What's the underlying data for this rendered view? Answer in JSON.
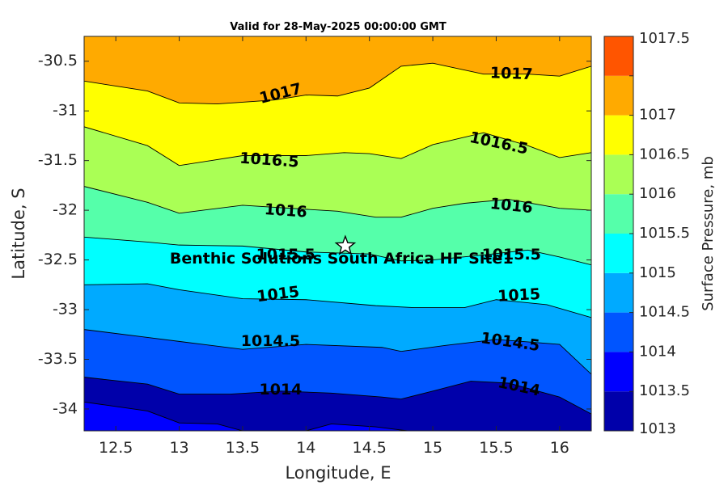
{
  "chart_data": {
    "type": "contour",
    "title": "Valid for 28-May-2025 00:00:00 GMT",
    "xlabel": "Longitude, E",
    "ylabel": "Latitude, S",
    "xlim": [
      12.25,
      16.25
    ],
    "ylim": [
      -34.22,
      -30.25
    ],
    "x_ticks": [
      12.5,
      13,
      13.5,
      14,
      14.5,
      15,
      15.5,
      16
    ],
    "x_tick_labels": [
      "12.5",
      "13",
      "13.5",
      "14",
      "14.5",
      "15",
      "15.5",
      "16"
    ],
    "y_ticks": [
      -30.5,
      -31,
      -31.5,
      -32,
      -32.5,
      -33,
      -33.5,
      -34
    ],
    "y_tick_labels": [
      "-30.5",
      "-31",
      "-31.5",
      "-32",
      "-32.5",
      "-33",
      "-33.5",
      "-34"
    ],
    "colorbar": {
      "label": "Surface Pressure, mb",
      "levels": [
        1013,
        1013.5,
        1014,
        1014.5,
        1015,
        1015.5,
        1016,
        1016.5,
        1017,
        1017.5
      ],
      "labels": [
        "1013",
        "1013.5",
        "1014",
        "1014.5",
        "1015",
        "1015.5",
        "1016",
        "1016.5",
        "1017",
        "1017.5"
      ],
      "colors": [
        "#0000aa",
        "#0000ff",
        "#0055ff",
        "#00aaff",
        "#00ffff",
        "#55ffaa",
        "#aaff55",
        "#ffff00",
        "#ffaa00",
        "#ff5500"
      ]
    },
    "contours": [
      {
        "level": 1013.5,
        "points": [
          [
            12.25,
            -33.93
          ],
          [
            12.75,
            -34.02
          ],
          [
            13.0,
            -34.14
          ],
          [
            13.3,
            -34.15
          ],
          [
            13.5,
            -34.22
          ]
        ]
      },
      {
        "level": 1013.5,
        "points": [
          [
            14.0,
            -34.22
          ],
          [
            14.2,
            -34.15
          ],
          [
            14.55,
            -34.18
          ],
          [
            14.8,
            -34.22
          ]
        ]
      },
      {
        "level": 1014,
        "points": [
          [
            12.25,
            -33.68
          ],
          [
            12.75,
            -33.75
          ],
          [
            13.0,
            -33.85
          ],
          [
            13.4,
            -33.85
          ],
          [
            13.8,
            -33.82
          ],
          [
            14.2,
            -33.84
          ],
          [
            14.6,
            -33.88
          ],
          [
            14.75,
            -33.9
          ],
          [
            15.0,
            -33.82
          ],
          [
            15.3,
            -33.72
          ],
          [
            15.6,
            -33.74
          ],
          [
            16.0,
            -33.88
          ],
          [
            16.25,
            -34.05
          ]
        ]
      },
      {
        "level": 1014.5,
        "points": [
          [
            12.25,
            -33.2
          ],
          [
            12.75,
            -33.28
          ],
          [
            13.0,
            -33.32
          ],
          [
            13.5,
            -33.4
          ],
          [
            14.0,
            -33.35
          ],
          [
            14.6,
            -33.38
          ],
          [
            14.75,
            -33.42
          ],
          [
            15.1,
            -33.36
          ],
          [
            15.5,
            -33.3
          ],
          [
            16.0,
            -33.35
          ],
          [
            16.25,
            -33.65
          ]
        ]
      },
      {
        "level": 1015,
        "points": [
          [
            12.25,
            -32.75
          ],
          [
            12.75,
            -32.74
          ],
          [
            13.0,
            -32.8
          ],
          [
            13.5,
            -32.89
          ],
          [
            14.0,
            -32.9
          ],
          [
            14.55,
            -32.96
          ],
          [
            14.85,
            -32.98
          ],
          [
            15.25,
            -32.98
          ],
          [
            15.5,
            -32.9
          ],
          [
            15.9,
            -32.95
          ],
          [
            16.25,
            -33.08
          ]
        ]
      },
      {
        "level": 1015.5,
        "points": [
          [
            12.25,
            -32.27
          ],
          [
            12.75,
            -32.32
          ],
          [
            13.0,
            -32.35
          ],
          [
            13.5,
            -32.36
          ],
          [
            14.0,
            -32.42
          ],
          [
            14.5,
            -32.44
          ],
          [
            14.75,
            -32.51
          ],
          [
            15.0,
            -32.5
          ],
          [
            15.4,
            -32.45
          ],
          [
            15.75,
            -32.4
          ],
          [
            16.0,
            -32.47
          ],
          [
            16.25,
            -32.55
          ]
        ]
      },
      {
        "level": 1016,
        "points": [
          [
            12.25,
            -31.76
          ],
          [
            12.75,
            -31.92
          ],
          [
            13.0,
            -32.03
          ],
          [
            13.5,
            -31.95
          ],
          [
            14.0,
            -31.99
          ],
          [
            14.25,
            -32.01
          ],
          [
            14.55,
            -32.07
          ],
          [
            14.75,
            -32.07
          ],
          [
            15.0,
            -31.98
          ],
          [
            15.25,
            -31.93
          ],
          [
            15.6,
            -31.89
          ],
          [
            16.0,
            -31.98
          ],
          [
            16.25,
            -32.0
          ]
        ]
      },
      {
        "level": 1016.5,
        "points": [
          [
            12.25,
            -31.16
          ],
          [
            12.75,
            -31.35
          ],
          [
            13.0,
            -31.55
          ],
          [
            13.25,
            -31.5
          ],
          [
            13.5,
            -31.45
          ],
          [
            14.0,
            -31.45
          ],
          [
            14.3,
            -31.42
          ],
          [
            14.5,
            -31.43
          ],
          [
            14.75,
            -31.48
          ],
          [
            15.0,
            -31.34
          ],
          [
            15.4,
            -31.22
          ],
          [
            15.75,
            -31.35
          ],
          [
            16.0,
            -31.47
          ],
          [
            16.25,
            -31.42
          ]
        ]
      },
      {
        "level": 1017,
        "points": [
          [
            12.25,
            -30.7
          ],
          [
            12.75,
            -30.8
          ],
          [
            13.0,
            -30.92
          ],
          [
            13.3,
            -30.93
          ],
          [
            13.75,
            -30.89
          ],
          [
            14.0,
            -30.84
          ],
          [
            14.25,
            -30.85
          ],
          [
            14.5,
            -30.77
          ],
          [
            14.75,
            -30.55
          ],
          [
            15.0,
            -30.52
          ],
          [
            15.4,
            -30.63
          ],
          [
            15.75,
            -30.63
          ],
          [
            16.0,
            -30.65
          ],
          [
            16.25,
            -30.55
          ]
        ]
      }
    ],
    "contour_labels": [
      {
        "text": "1017",
        "x": 13.8,
        "y": -30.83,
        "angle": -14
      },
      {
        "text": "1017",
        "x": 15.62,
        "y": -30.63,
        "angle": 2
      },
      {
        "text": "1016.5",
        "x": 13.71,
        "y": -31.5,
        "angle": 4
      },
      {
        "text": "1016.5",
        "x": 15.52,
        "y": -31.33,
        "angle": 12
      },
      {
        "text": "1016",
        "x": 13.84,
        "y": -32.01,
        "angle": 4
      },
      {
        "text": "1016",
        "x": 15.62,
        "y": -31.96,
        "angle": 6
      },
      {
        "text": "1015.5",
        "x": 13.84,
        "y": -32.45,
        "angle": 0
      },
      {
        "text": "1015.5",
        "x": 15.62,
        "y": -32.45,
        "angle": 0
      },
      {
        "text": "1015",
        "x": 13.78,
        "y": -32.85,
        "angle": -7
      },
      {
        "text": "1015",
        "x": 15.68,
        "y": -32.86,
        "angle": -3
      },
      {
        "text": "1014.5",
        "x": 13.72,
        "y": -33.32,
        "angle": 0
      },
      {
        "text": "1014.5",
        "x": 15.61,
        "y": -33.33,
        "angle": 8
      },
      {
        "text": "1014",
        "x": 13.8,
        "y": -33.81,
        "angle": 0
      },
      {
        "text": "1014",
        "x": 15.68,
        "y": -33.78,
        "angle": 12
      }
    ],
    "marker": {
      "type": "star",
      "x": 14.31,
      "y": -32.36
    },
    "annotation": {
      "text": "Benthic Solutions South Africa HF Site1",
      "x": 14.28,
      "y": -32.49
    }
  }
}
